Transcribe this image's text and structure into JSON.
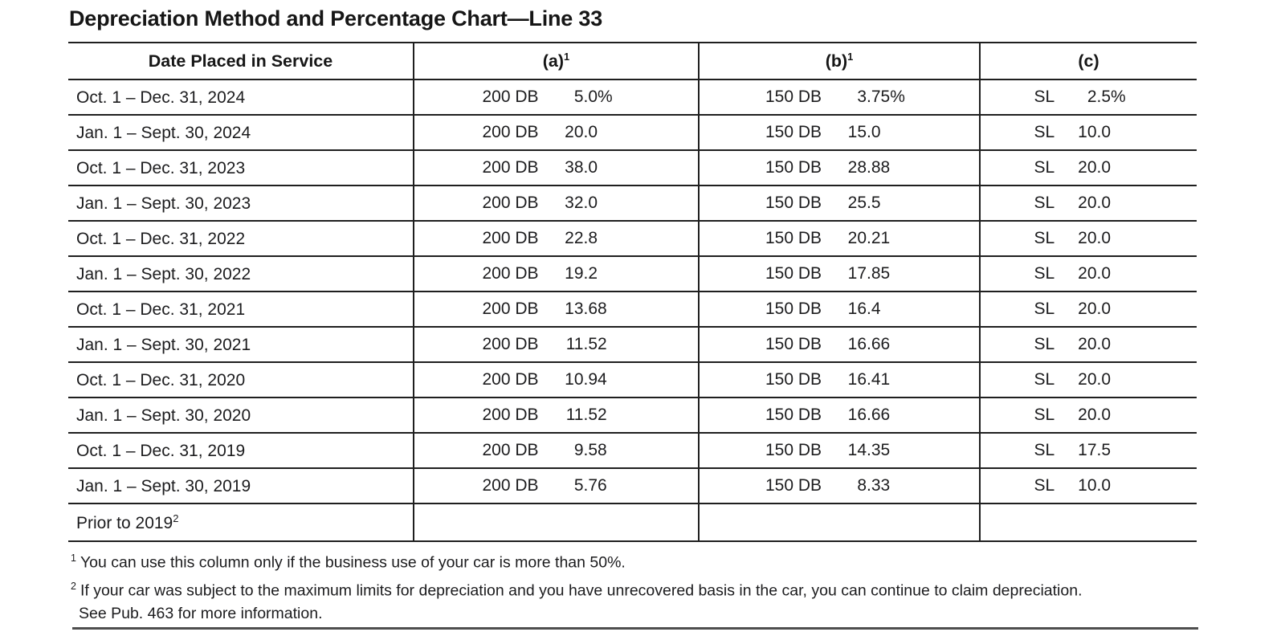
{
  "title": "Depreciation Method and Percentage Chart—Line 33",
  "table": {
    "headers": {
      "date": "Date Placed in Service",
      "a": {
        "label": "(a)",
        "sup": "1"
      },
      "b": {
        "label": "(b)",
        "sup": "1"
      },
      "c": {
        "label": "(c)",
        "sup": ""
      }
    },
    "rows": [
      {
        "date": "Oct. 1 – Dec. 31, 2024",
        "sup": "",
        "a_method": "200 DB",
        "a_value": "5.0%",
        "b_method": "150 DB",
        "b_value": "3.75%",
        "c_method": "SL",
        "c_value": "2.5%"
      },
      {
        "date": "Jan. 1 – Sept. 30, 2024",
        "sup": "",
        "a_method": "200 DB",
        "a_value": "20.0",
        "b_method": "150 DB",
        "b_value": "15.0",
        "c_method": "SL",
        "c_value": "10.0"
      },
      {
        "date": "Oct. 1 – Dec. 31, 2023",
        "sup": "",
        "a_method": "200 DB",
        "a_value": "38.0",
        "b_method": "150 DB",
        "b_value": "28.88",
        "c_method": "SL",
        "c_value": "20.0"
      },
      {
        "date": "Jan. 1 – Sept. 30, 2023",
        "sup": "",
        "a_method": "200 DB",
        "a_value": "32.0",
        "b_method": "150 DB",
        "b_value": "25.5",
        "c_method": "SL",
        "c_value": "20.0"
      },
      {
        "date": "Oct. 1 – Dec. 31, 2022",
        "sup": "",
        "a_method": "200 DB",
        "a_value": "22.8",
        "b_method": "150 DB",
        "b_value": "20.21",
        "c_method": "SL",
        "c_value": "20.0"
      },
      {
        "date": "Jan. 1 – Sept. 30, 2022",
        "sup": "",
        "a_method": "200 DB",
        "a_value": "19.2",
        "b_method": "150 DB",
        "b_value": "17.85",
        "c_method": "SL",
        "c_value": "20.0"
      },
      {
        "date": "Oct. 1 – Dec. 31, 2021",
        "sup": "",
        "a_method": "200 DB",
        "a_value": "13.68",
        "b_method": "150 DB",
        "b_value": "16.4",
        "c_method": "SL",
        "c_value": "20.0"
      },
      {
        "date": "Jan. 1 – Sept. 30, 2021",
        "sup": "",
        "a_method": "200 DB",
        "a_value": "11.52",
        "b_method": "150 DB",
        "b_value": "16.66",
        "c_method": "SL",
        "c_value": "20.0"
      },
      {
        "date": "Oct. 1 – Dec. 31, 2020",
        "sup": "",
        "a_method": "200 DB",
        "a_value": "10.94",
        "b_method": "150 DB",
        "b_value": "16.41",
        "c_method": "SL",
        "c_value": "20.0"
      },
      {
        "date": "Jan. 1 – Sept. 30, 2020",
        "sup": "",
        "a_method": "200 DB",
        "a_value": "11.52",
        "b_method": "150 DB",
        "b_value": "16.66",
        "c_method": "SL",
        "c_value": "20.0"
      },
      {
        "date": "Oct. 1 – Dec. 31, 2019",
        "sup": "",
        "a_method": "200 DB",
        "a_value": "9.58",
        "b_method": "150 DB",
        "b_value": "14.35",
        "c_method": "SL",
        "c_value": "17.5"
      },
      {
        "date": "Jan. 1 – Sept. 30, 2019",
        "sup": "",
        "a_method": "200 DB",
        "a_value": "5.76",
        "b_method": "150 DB",
        "b_value": "8.33",
        "c_method": "SL",
        "c_value": "10.0"
      },
      {
        "date": "Prior to 2019",
        "sup": "2",
        "a_method": "",
        "a_value": "",
        "b_method": "",
        "b_value": "",
        "c_method": "",
        "c_value": ""
      }
    ]
  },
  "footnotes": [
    {
      "sup": "1",
      "text": "You can use this column only if the business use of your car is more than 50%."
    },
    {
      "sup": "2",
      "text": "If your car was subject to the maximum limits for depreciation and you have unrecovered basis in the car, you can continue to claim depreciation.",
      "text2": "See Pub. 463 for more information."
    }
  ]
}
